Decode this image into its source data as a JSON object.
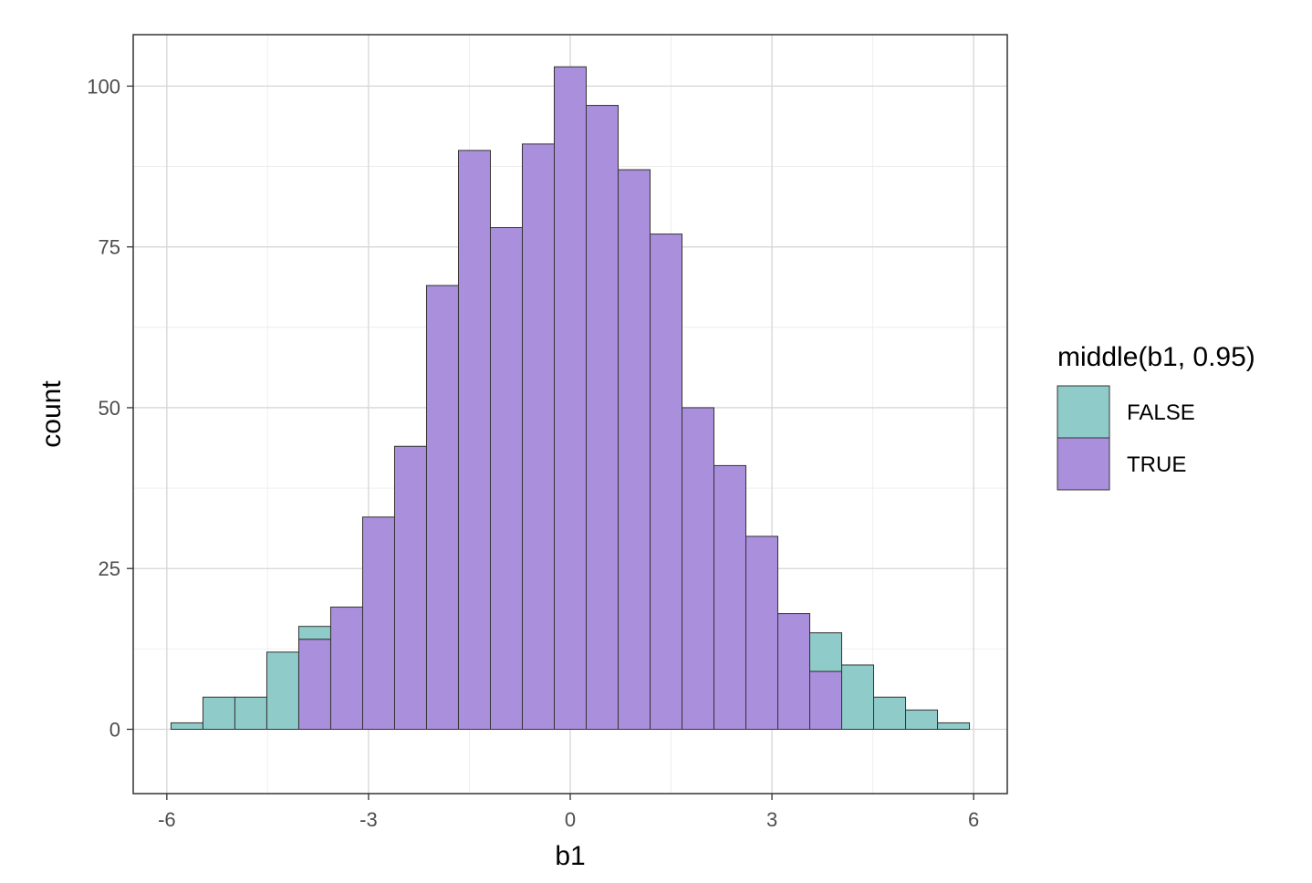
{
  "chart_data": {
    "type": "bar",
    "title": "",
    "xlabel": "b1",
    "ylabel": "count",
    "xlim": [
      -6.5,
      6.5
    ],
    "ylim": [
      -10,
      108
    ],
    "xticks": [
      -6,
      -3,
      0,
      3,
      6
    ],
    "xtick_labels": [
      "-6",
      "-3",
      "0",
      "3",
      "6"
    ],
    "yticks": [
      0,
      25,
      50,
      75,
      100
    ],
    "ytick_labels": [
      "0",
      "25",
      "50",
      "75",
      "100"
    ],
    "grid": true,
    "stacked": true,
    "bin_width": 0.475,
    "bin_centers": [
      -5.7,
      -5.225,
      -4.75,
      -4.275,
      -3.8,
      -3.325,
      -2.85,
      -2.375,
      -1.9,
      -1.425,
      -0.95,
      -0.475,
      0.0,
      0.475,
      0.95,
      1.425,
      1.9,
      2.375,
      2.85,
      3.325,
      3.8,
      4.275,
      4.75,
      5.225,
      5.7
    ],
    "series": [
      {
        "name": "TRUE",
        "color": "#A98FDC",
        "values": [
          0,
          0,
          0,
          0,
          14,
          19,
          33,
          44,
          69,
          90,
          78,
          91,
          103,
          97,
          87,
          77,
          50,
          41,
          30,
          18,
          9,
          0,
          0,
          0,
          0
        ]
      },
      {
        "name": "FALSE",
        "color": "#8FCBC8",
        "values": [
          1,
          5,
          5,
          12,
          2,
          0,
          0,
          0,
          0,
          0,
          0,
          0,
          0,
          0,
          0,
          0,
          0,
          0,
          0,
          0,
          6,
          10,
          5,
          3,
          1
        ]
      }
    ],
    "legend": {
      "title": "middle(b1, 0.95)",
      "position": "right",
      "entries": [
        {
          "label": "FALSE",
          "color": "#8FCBC8"
        },
        {
          "label": "TRUE",
          "color": "#A98FDC"
        }
      ]
    }
  }
}
